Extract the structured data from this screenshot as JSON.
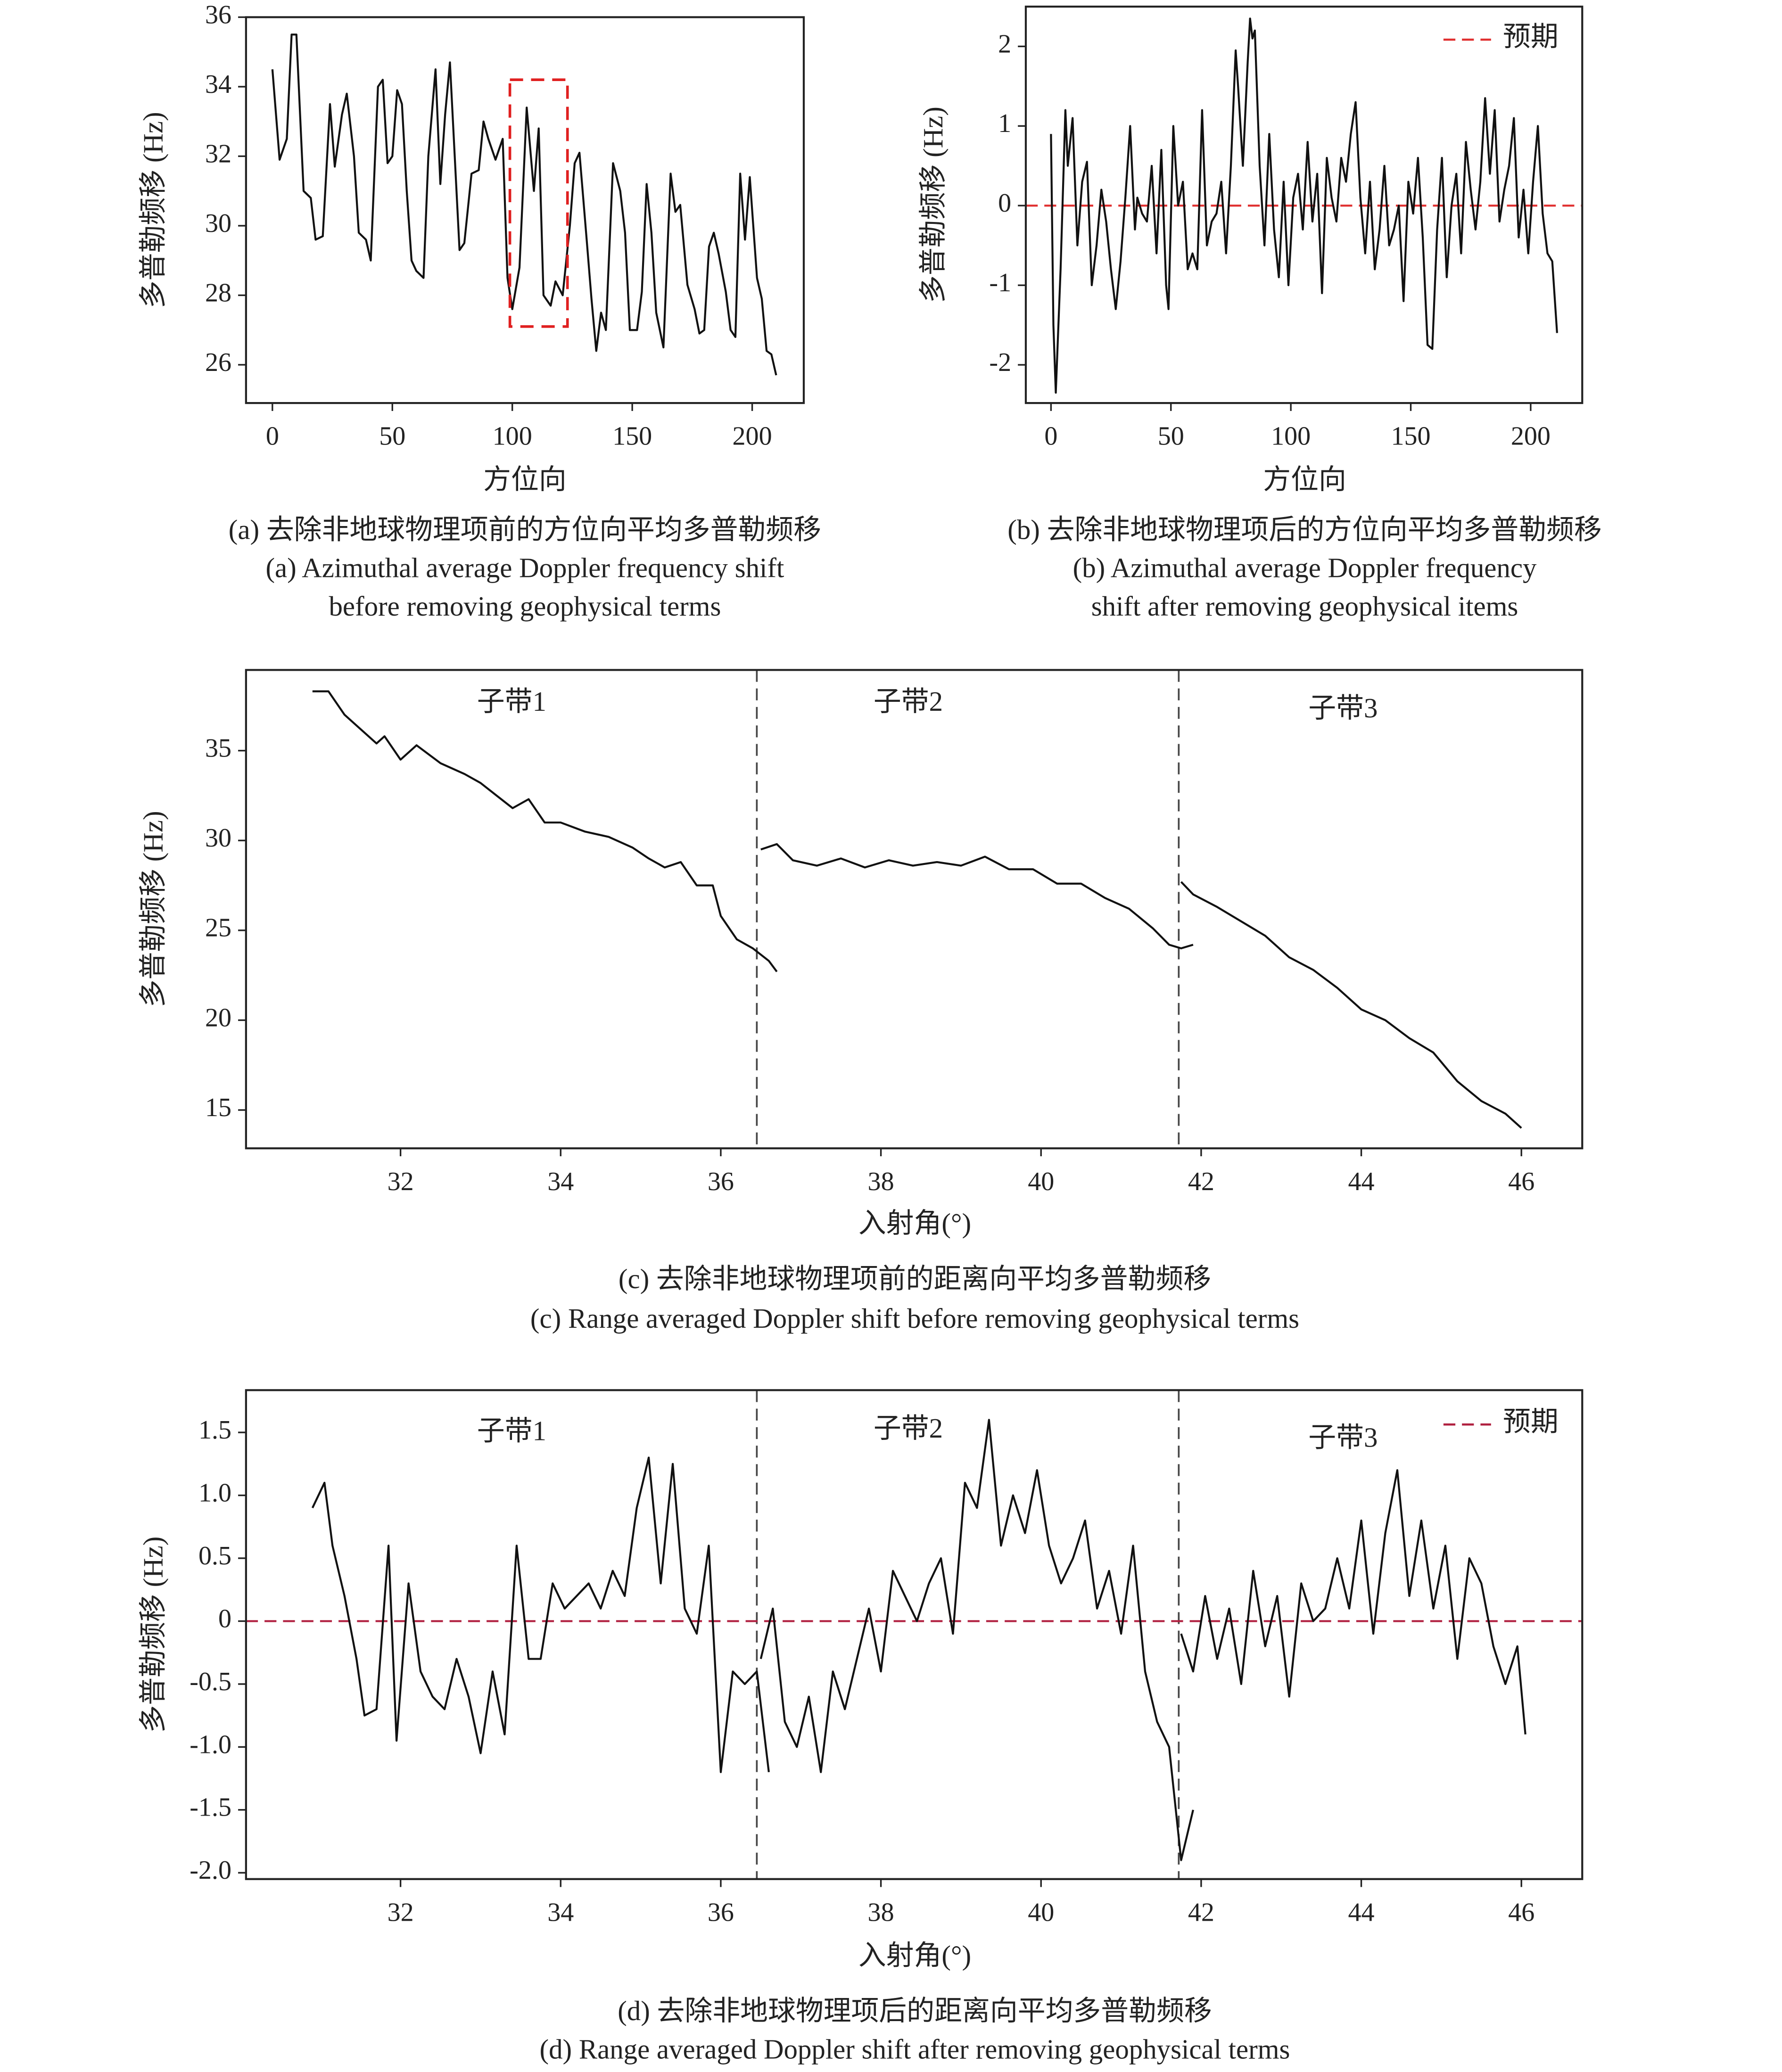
{
  "chart_data": [
    {
      "type": "line",
      "xlabel": "方位向",
      "ylabel": "多普勒频移 (Hz)",
      "caption": [
        "(a) 去除非地球物理项前的方位向平均多普勒频移",
        "(a) Azimuthal average Doppler frequency shift",
        "before removing geophysical terms"
      ],
      "xlim": [
        -11,
        221.5
      ],
      "ylim": [
        24.9,
        36
      ],
      "xticks": [
        0,
        50,
        100,
        150,
        200
      ],
      "yticks": [
        26,
        28,
        30,
        32,
        34,
        36
      ],
      "highlight": {
        "x": [
          99,
          123
        ],
        "y": [
          27.1,
          34.2
        ],
        "color": "#e02020"
      },
      "series": [
        {
          "color": "#111111",
          "x": [
            0,
            3,
            6,
            8,
            10,
            13,
            16,
            18,
            21,
            24,
            26,
            29,
            31,
            34,
            36,
            39,
            41,
            44,
            46,
            48,
            50,
            52,
            54,
            56,
            58,
            60,
            63,
            65,
            68,
            70,
            72,
            74,
            76,
            78,
            80,
            83,
            86,
            88,
            90,
            93,
            96,
            98,
            100,
            103,
            106,
            109,
            111,
            113,
            116,
            118,
            121,
            124,
            126,
            128,
            131,
            133,
            135,
            137,
            139,
            142,
            145,
            147,
            149,
            152,
            154,
            156,
            158,
            160,
            163,
            166,
            168,
            170,
            173,
            176,
            178,
            180,
            182,
            184,
            186,
            189,
            191,
            193,
            195,
            197,
            199,
            202,
            204,
            206,
            208,
            210
          ],
          "values": [
            34.5,
            31.9,
            32.5,
            35.5,
            35.5,
            31,
            30.8,
            29.6,
            29.7,
            33.5,
            31.7,
            33.2,
            33.8,
            32,
            29.8,
            29.6,
            29,
            34,
            34.2,
            31.8,
            32,
            33.9,
            33.5,
            31,
            29,
            28.7,
            28.5,
            32,
            34.5,
            31.2,
            33.2,
            34.7,
            32,
            29.3,
            29.5,
            31.5,
            31.6,
            33,
            32.5,
            31.9,
            32.5,
            28.5,
            27.6,
            28.8,
            33.4,
            31,
            32.8,
            28,
            27.7,
            28.4,
            28,
            30,
            31.8,
            32.1,
            29.6,
            27.9,
            26.4,
            27.5,
            27,
            31.8,
            31,
            29.8,
            27,
            27,
            28.1,
            31.2,
            29.8,
            27.5,
            26.5,
            31.5,
            30.4,
            30.6,
            28.3,
            27.6,
            26.9,
            27,
            29.4,
            29.8,
            29.2,
            28.1,
            27,
            26.8,
            31.5,
            29.6,
            31.4,
            28.5,
            27.9,
            26.4,
            26.3,
            25.7
          ]
        }
      ]
    },
    {
      "type": "line",
      "xlabel": "方位向",
      "ylabel": "多普勒频移 (Hz)",
      "caption": [
        "(b) 去除非地球物理项后的方位向平均多普勒频移",
        "(b) Azimuthal average Doppler frequency",
        "shift after removing geophysical items"
      ],
      "xlim": [
        -10.5,
        221.5
      ],
      "ylim": [
        -2.48,
        2.5
      ],
      "xticks": [
        0,
        50,
        100,
        150,
        200
      ],
      "yticks": [
        -2,
        -1,
        0,
        1,
        2
      ],
      "hline": {
        "name": "预期",
        "value": 0,
        "color": "#e03030"
      },
      "legend": "upper right",
      "series": [
        {
          "color": "#111111",
          "x": [
            0,
            1,
            2,
            4,
            6,
            7,
            9,
            11,
            13,
            15,
            17,
            19,
            21,
            23,
            25,
            27,
            29,
            31,
            33,
            35,
            36,
            38,
            40,
            42,
            44,
            46,
            48,
            49,
            51,
            53,
            55,
            57,
            59,
            61,
            63,
            65,
            67,
            69,
            71,
            73,
            75,
            77,
            78,
            80,
            82,
            83,
            84,
            85,
            87,
            89,
            91,
            93,
            95,
            97,
            99,
            101,
            103,
            105,
            107,
            109,
            111,
            113,
            115,
            117,
            119,
            121,
            123,
            125,
            127,
            129,
            131,
            133,
            135,
            137,
            139,
            141,
            143,
            145,
            147,
            149,
            151,
            153,
            155,
            157,
            159,
            161,
            163,
            165,
            167,
            169,
            171,
            173,
            175,
            177,
            179,
            181,
            183,
            185,
            187,
            189,
            191,
            193,
            195,
            197,
            199,
            201,
            203,
            205,
            207,
            209,
            211
          ],
          "values": [
            0.9,
            -1.5,
            -2.35,
            -0.8,
            1.2,
            0.5,
            1.1,
            -0.5,
            0.3,
            0.55,
            -1,
            -0.5,
            0.2,
            -0.2,
            -0.8,
            -1.3,
            -0.7,
            0.1,
            1,
            -0.3,
            0.1,
            -0.1,
            -0.2,
            0.5,
            -0.6,
            0.7,
            -1,
            -1.3,
            1,
            0,
            0.3,
            -0.8,
            -0.6,
            -0.8,
            1.2,
            -0.5,
            -0.2,
            -0.1,
            0.3,
            -0.6,
            0.5,
            1.95,
            1.5,
            0.5,
            1.8,
            2.35,
            2.1,
            2.2,
            0.5,
            -0.5,
            0.9,
            -0.3,
            -0.9,
            0.3,
            -1,
            0.1,
            0.4,
            -0.3,
            0.8,
            -0.2,
            0.4,
            -1.1,
            0.6,
            0.1,
            -0.2,
            0.6,
            0.3,
            0.9,
            1.3,
            0.1,
            -0.6,
            0.3,
            -0.8,
            -0.3,
            0.5,
            -0.5,
            -0.3,
            0,
            -1.2,
            0.3,
            -0.1,
            0.6,
            -0.4,
            -1.75,
            -1.8,
            -0.3,
            0.6,
            -0.9,
            0,
            0.4,
            -0.6,
            0.8,
            0.2,
            -0.3,
            0.3,
            1.35,
            0.4,
            1.2,
            -0.2,
            0.2,
            0.5,
            1.1,
            -0.4,
            0.2,
            -0.6,
            0.3,
            1,
            -0.1,
            -0.6,
            -0.7,
            -1.6
          ]
        }
      ]
    },
    {
      "type": "line",
      "xlabel": "入射角(°)",
      "ylabel": "多普勒频移 (Hz)",
      "caption": [
        "(c) 去除非地球物理项前的距离向平均多普勒频移",
        "(c) Range averaged Doppler shift before removing geophysical terms"
      ],
      "xlim": [
        30.07,
        46.76
      ],
      "ylim": [
        12.87,
        39.49
      ],
      "xticks": [
        32,
        34,
        36,
        38,
        40,
        42,
        44,
        46
      ],
      "yticks": [
        15,
        20,
        25,
        30,
        35
      ],
      "vlines": [
        36.45,
        41.72
      ],
      "annotations": [
        "子带1",
        "子带2",
        "子带3"
      ],
      "series": [
        {
          "color": "#111111",
          "x": [
            30.9,
            31.1,
            31.3,
            31.5,
            31.7,
            31.8,
            32.0,
            32.2,
            32.5,
            32.8,
            33.0,
            33.2,
            33.4,
            33.6,
            33.8,
            34.0,
            34.3,
            34.6,
            34.9,
            35.1,
            35.3,
            35.5,
            35.7,
            35.9,
            36.0,
            36.2,
            36.4,
            36.6,
            36.7
          ],
          "values": [
            38.3,
            38.3,
            37,
            36.2,
            35.4,
            35.8,
            34.5,
            35.3,
            34.3,
            33.7,
            33.2,
            32.5,
            31.8,
            32.3,
            31,
            31,
            30.5,
            30.2,
            29.6,
            29,
            28.5,
            28.8,
            27.5,
            27.5,
            25.8,
            24.5,
            24,
            23.3,
            22.7
          ]
        },
        {
          "color": "#111111",
          "x": [
            36.5,
            36.7,
            36.9,
            37.2,
            37.5,
            37.8,
            38.1,
            38.4,
            38.7,
            39.0,
            39.3,
            39.6,
            39.9,
            40.2,
            40.5,
            40.8,
            41.1,
            41.4,
            41.6,
            41.75,
            41.9
          ],
          "values": [
            29.5,
            29.8,
            28.9,
            28.6,
            29,
            28.5,
            28.9,
            28.6,
            28.8,
            28.6,
            29.1,
            28.4,
            28.4,
            27.6,
            27.6,
            26.8,
            26.2,
            25.1,
            24.2,
            24,
            24.2
          ]
        },
        {
          "color": "#111111",
          "x": [
            41.75,
            41.9,
            42.2,
            42.5,
            42.8,
            43.1,
            43.4,
            43.7,
            44.0,
            44.3,
            44.6,
            44.9,
            45.2,
            45.5,
            45.8,
            46.0
          ],
          "values": [
            27.7,
            27,
            26.3,
            25.5,
            24.7,
            23.5,
            22.8,
            21.8,
            20.6,
            20,
            19,
            18.2,
            16.6,
            15.5,
            14.8,
            14
          ]
        }
      ]
    },
    {
      "type": "line",
      "xlabel": "入射角(°)",
      "ylabel": "多普勒频移 (Hz)",
      "caption": [
        "(d) 去除非地球物理项后的距离向平均多普勒频移",
        "(d) Range averaged Doppler shift after removing geophysical terms"
      ],
      "xlim": [
        30.07,
        46.76
      ],
      "ylim": [
        -2.05,
        1.836
      ],
      "xticks": [
        32,
        34,
        36,
        38,
        40,
        42,
        44,
        46
      ],
      "yticks": [
        {
          "value": -2,
          "label": "-2.0"
        },
        -1.5,
        {
          "value": -1,
          "label": "-1.0"
        },
        -0.5,
        0,
        0.5,
        {
          "value": 1,
          "label": "1.0"
        },
        1.5
      ],
      "vlines": [
        36.45,
        41.72
      ],
      "annotations": [
        "子带1",
        "子带2",
        "子带3"
      ],
      "hline": {
        "name": "预期",
        "value": 0,
        "color": "#b02040"
      },
      "legend": "upper right",
      "series": [
        {
          "color": "#111111",
          "x": [
            30.9,
            31.05,
            31.15,
            31.3,
            31.45,
            31.55,
            31.7,
            31.85,
            31.95,
            32.1,
            32.25,
            32.4,
            32.55,
            32.7,
            32.85,
            33.0,
            33.15,
            33.3,
            33.45,
            33.6,
            33.75,
            33.9,
            34.05,
            34.2,
            34.35,
            34.5,
            34.65,
            34.8,
            34.95,
            35.1,
            35.25,
            35.4,
            35.55,
            35.7,
            35.85,
            36.0,
            36.15,
            36.3,
            36.45,
            36.6
          ],
          "values": [
            0.9,
            1.1,
            0.6,
            0.2,
            -0.3,
            -0.75,
            -0.7,
            0.6,
            -0.95,
            0.3,
            -0.4,
            -0.6,
            -0.7,
            -0.3,
            -0.6,
            -1.05,
            -0.4,
            -0.9,
            0.6,
            -0.3,
            -0.3,
            0.3,
            0.1,
            0.2,
            0.3,
            0.1,
            0.4,
            0.2,
            0.9,
            1.3,
            0.3,
            1.25,
            0.1,
            -0.1,
            0.6,
            -1.2,
            -0.4,
            -0.5,
            -0.4,
            -1.2
          ]
        },
        {
          "color": "#111111",
          "x": [
            36.5,
            36.65,
            36.8,
            36.95,
            37.1,
            37.25,
            37.4,
            37.55,
            37.7,
            37.85,
            38.0,
            38.15,
            38.3,
            38.45,
            38.6,
            38.75,
            38.9,
            39.05,
            39.2,
            39.35,
            39.5,
            39.65,
            39.8,
            39.95,
            40.1,
            40.25,
            40.4,
            40.55,
            40.7,
            40.85,
            41.0,
            41.15,
            41.3,
            41.45,
            41.6,
            41.75,
            41.9
          ],
          "values": [
            -0.3,
            0.1,
            -0.8,
            -1.0,
            -0.6,
            -1.2,
            -0.4,
            -0.7,
            -0.3,
            0.1,
            -0.4,
            0.4,
            0.2,
            0.0,
            0.3,
            0.5,
            -0.1,
            1.1,
            0.9,
            1.6,
            0.6,
            1.0,
            0.7,
            1.2,
            0.6,
            0.3,
            0.5,
            0.8,
            0.1,
            0.4,
            -0.1,
            0.6,
            -0.4,
            -0.8,
            -1.0,
            -1.9,
            -1.5
          ]
        },
        {
          "color": "#111111",
          "x": [
            41.75,
            41.9,
            42.05,
            42.2,
            42.35,
            42.5,
            42.65,
            42.8,
            42.95,
            43.1,
            43.25,
            43.4,
            43.55,
            43.7,
            43.85,
            44.0,
            44.15,
            44.3,
            44.45,
            44.6,
            44.75,
            44.9,
            45.05,
            45.2,
            45.35,
            45.5,
            45.65,
            45.8,
            45.95,
            46.05
          ],
          "values": [
            -0.1,
            -0.4,
            0.2,
            -0.3,
            0.1,
            -0.5,
            0.4,
            -0.2,
            0.2,
            -0.6,
            0.3,
            0.0,
            0.1,
            0.5,
            0.1,
            0.8,
            -0.1,
            0.7,
            1.2,
            0.2,
            0.8,
            0.1,
            0.6,
            -0.3,
            0.5,
            0.3,
            -0.2,
            -0.5,
            -0.2,
            -0.9
          ]
        }
      ]
    }
  ]
}
